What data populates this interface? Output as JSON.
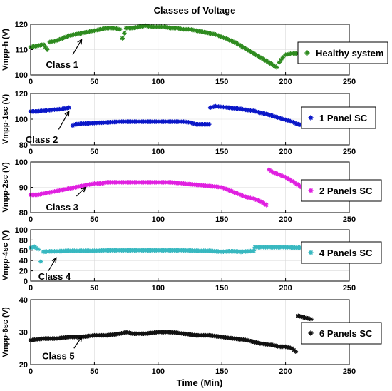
{
  "chart_data": {
    "type": "scatter",
    "title": "Classes of Voltage",
    "xlabel": "Time (Min)",
    "xlim": [
      0,
      250
    ],
    "xticks": [
      0,
      50,
      100,
      150,
      200,
      250
    ],
    "marker": "*",
    "panels": [
      {
        "ylabel": "Vmpp-h (V)",
        "ylim": [
          100,
          120
        ],
        "yticks": [
          100,
          110,
          120
        ],
        "series_name": "Healthy system",
        "color": "#2e8b1f",
        "class_label": "Class 1",
        "points": [
          [
            0,
            111
          ],
          [
            5,
            111.5
          ],
          [
            10,
            112
          ],
          [
            15,
            113
          ],
          [
            20,
            113.5
          ],
          [
            25,
            114.5
          ],
          [
            30,
            115.5
          ],
          [
            35,
            116
          ],
          [
            40,
            116.5
          ],
          [
            45,
            117
          ],
          [
            50,
            117.5
          ],
          [
            55,
            118
          ],
          [
            60,
            118.5
          ],
          [
            65,
            118.5
          ],
          [
            70,
            118
          ],
          [
            72,
            114.5
          ],
          [
            75,
            118.5
          ],
          [
            80,
            118.5
          ],
          [
            85,
            119
          ],
          [
            90,
            119.5
          ],
          [
            95,
            119
          ],
          [
            100,
            119
          ],
          [
            105,
            119
          ],
          [
            110,
            118.5
          ],
          [
            115,
            118.5
          ],
          [
            120,
            118
          ],
          [
            125,
            118
          ],
          [
            130,
            117.5
          ],
          [
            135,
            117
          ],
          [
            140,
            116.5
          ],
          [
            145,
            116
          ],
          [
            150,
            115
          ],
          [
            155,
            114
          ],
          [
            160,
            113
          ],
          [
            165,
            111.5
          ],
          [
            170,
            110
          ],
          [
            175,
            108.5
          ],
          [
            180,
            107
          ],
          [
            185,
            105.5
          ],
          [
            190,
            104
          ],
          [
            193,
            103
          ],
          [
            195,
            105
          ],
          [
            198,
            107
          ],
          [
            200,
            108
          ],
          [
            205,
            108.5
          ],
          [
            210,
            108.5
          ],
          [
            13,
            110
          ]
        ]
      },
      {
        "ylabel": "Vmpp-1sc (V)",
        "ylim": [
          80,
          120
        ],
        "yticks": [
          80,
          100,
          120
        ],
        "series_name": "1 Panel SC",
        "color": "#0a17c8",
        "class_label": "Class 2",
        "points": [
          [
            0,
            106
          ],
          [
            5,
            106
          ],
          [
            10,
            106.5
          ],
          [
            15,
            107
          ],
          [
            20,
            107.5
          ],
          [
            25,
            108
          ],
          [
            30,
            109
          ],
          [
            33,
            95
          ],
          [
            35,
            96
          ],
          [
            40,
            96.5
          ],
          [
            50,
            97
          ],
          [
            60,
            97.5
          ],
          [
            70,
            98
          ],
          [
            80,
            98
          ],
          [
            90,
            98
          ],
          [
            100,
            98
          ],
          [
            110,
            98
          ],
          [
            120,
            98
          ],
          [
            125,
            97.5
          ],
          [
            130,
            96
          ],
          [
            135,
            96
          ],
          [
            140,
            96
          ],
          [
            141,
            109
          ],
          [
            145,
            110
          ],
          [
            150,
            109.5
          ],
          [
            155,
            109
          ],
          [
            160,
            108.5
          ],
          [
            165,
            108
          ],
          [
            170,
            107
          ],
          [
            175,
            106.5
          ],
          [
            180,
            105
          ],
          [
            185,
            104
          ],
          [
            190,
            102.5
          ],
          [
            195,
            101
          ],
          [
            200,
            99.5
          ],
          [
            205,
            98
          ],
          [
            210,
            96
          ],
          [
            215,
            95
          ]
        ]
      },
      {
        "ylabel": "Vmpp-2sc (V)",
        "ylim": [
          80,
          100
        ],
        "yticks": [
          80,
          90,
          100
        ],
        "series_name": "2 Panels SC",
        "color": "#e020e0",
        "class_label": "Class 3",
        "points": [
          [
            0,
            87
          ],
          [
            5,
            87
          ],
          [
            10,
            87.5
          ],
          [
            15,
            88
          ],
          [
            20,
            88.5
          ],
          [
            25,
            89
          ],
          [
            30,
            89.5
          ],
          [
            35,
            90
          ],
          [
            40,
            90.5
          ],
          [
            45,
            91
          ],
          [
            50,
            91.5
          ],
          [
            55,
            91.5
          ],
          [
            60,
            92
          ],
          [
            70,
            92
          ],
          [
            80,
            92
          ],
          [
            90,
            92
          ],
          [
            100,
            92
          ],
          [
            110,
            92
          ],
          [
            120,
            91.5
          ],
          [
            130,
            91
          ],
          [
            140,
            90.5
          ],
          [
            150,
            90
          ],
          [
            155,
            89
          ],
          [
            160,
            88
          ],
          [
            165,
            87
          ],
          [
            170,
            86
          ],
          [
            175,
            85.5
          ],
          [
            180,
            84.5
          ],
          [
            185,
            83
          ],
          [
            187,
            97
          ],
          [
            190,
            96
          ],
          [
            195,
            95
          ],
          [
            200,
            94
          ],
          [
            205,
            92.5
          ],
          [
            210,
            91
          ],
          [
            215,
            89
          ]
        ]
      },
      {
        "ylabel": "Vmpp-4sc (V)",
        "ylim": [
          0,
          100
        ],
        "yticks": [
          0,
          20,
          40,
          60,
          80,
          100
        ],
        "series_name": "4 Panels SC",
        "color": "#38b8c0",
        "class_label": "Class 4",
        "points": [
          [
            0,
            65
          ],
          [
            3,
            67
          ],
          [
            6,
            62
          ],
          [
            8,
            38
          ],
          [
            10,
            57
          ],
          [
            15,
            58
          ],
          [
            20,
            58
          ],
          [
            30,
            59
          ],
          [
            40,
            59
          ],
          [
            50,
            59
          ],
          [
            60,
            60
          ],
          [
            70,
            60
          ],
          [
            80,
            60
          ],
          [
            90,
            60
          ],
          [
            100,
            60
          ],
          [
            110,
            60
          ],
          [
            120,
            60
          ],
          [
            130,
            59
          ],
          [
            140,
            59
          ],
          [
            150,
            57
          ],
          [
            155,
            58
          ],
          [
            160,
            58
          ],
          [
            165,
            57
          ],
          [
            170,
            58
          ],
          [
            175,
            59
          ],
          [
            176,
            66
          ],
          [
            180,
            66
          ],
          [
            190,
            66
          ],
          [
            200,
            66
          ],
          [
            210,
            65
          ],
          [
            215,
            65
          ]
        ]
      },
      {
        "ylabel": "Vmpp-6sc (V)",
        "ylim": [
          20,
          40
        ],
        "yticks": [
          20,
          30,
          40
        ],
        "series_name": "6 Panels SC",
        "color": "#111111",
        "class_label": "Class 5",
        "points": [
          [
            0,
            27.5
          ],
          [
            10,
            28
          ],
          [
            20,
            28
          ],
          [
            30,
            28.5
          ],
          [
            40,
            28.5
          ],
          [
            50,
            29
          ],
          [
            60,
            29
          ],
          [
            70,
            29.5
          ],
          [
            75,
            30
          ],
          [
            80,
            29.5
          ],
          [
            90,
            29.5
          ],
          [
            100,
            30
          ],
          [
            110,
            30
          ],
          [
            120,
            29.5
          ],
          [
            130,
            29
          ],
          [
            140,
            29
          ],
          [
            150,
            28.5
          ],
          [
            160,
            28
          ],
          [
            170,
            27.5
          ],
          [
            180,
            26.5
          ],
          [
            190,
            26
          ],
          [
            195,
            25.5
          ],
          [
            200,
            25.5
          ],
          [
            205,
            25
          ],
          [
            208,
            24
          ],
          [
            210,
            35
          ],
          [
            215,
            34.5
          ],
          [
            220,
            34
          ]
        ]
      }
    ]
  }
}
